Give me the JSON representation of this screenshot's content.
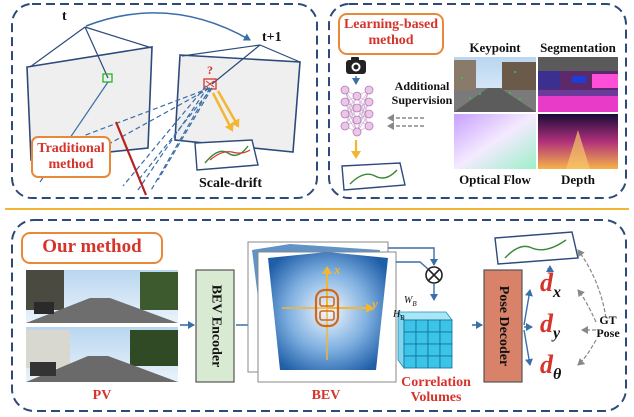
{
  "traditional": {
    "frame_t": "t",
    "frame_t1": "t+1",
    "query_mark": "?",
    "title": "Traditional method",
    "title_line1": "Traditional",
    "title_line2": "method",
    "scale_drift": "Scale-drift"
  },
  "learning": {
    "title_line1": "Learning-based",
    "title_line2": "method",
    "supervision_line1": "Additional",
    "supervision_line2": "Supervision",
    "keypoint": "Keypoint",
    "segmentation": "Segmentation",
    "optical_flow": "Optical Flow",
    "depth": "Depth"
  },
  "ours": {
    "title": "Our method",
    "pv": "PV",
    "bev_encoder": "BEV Encoder",
    "bev": "BEV",
    "axis_x": "x",
    "axis_y": "y",
    "wb": "W",
    "wb_sub": "B",
    "hb": "H",
    "hb_sub": "B",
    "correlation_line1": "Correlation",
    "correlation_line2": "Volumes",
    "pose_decoder": "Pose Decoder",
    "dx": "d",
    "dx_sub": "x",
    "dy": "d",
    "dy_sub": "y",
    "dtheta": "d",
    "dtheta_sub": "θ",
    "gt_line1": "GT",
    "gt_line2": "Pose"
  },
  "colors": {
    "panel_border": "#2d4a7a",
    "orange": "#e8893a",
    "title_red": "#d6332b",
    "divider": "#f2b632",
    "encoder_fill": "#d9ead3",
    "decoder_fill": "#d9826a",
    "bev_blue": "#3a78b8",
    "corr_cyan": "#3cc3e8"
  }
}
